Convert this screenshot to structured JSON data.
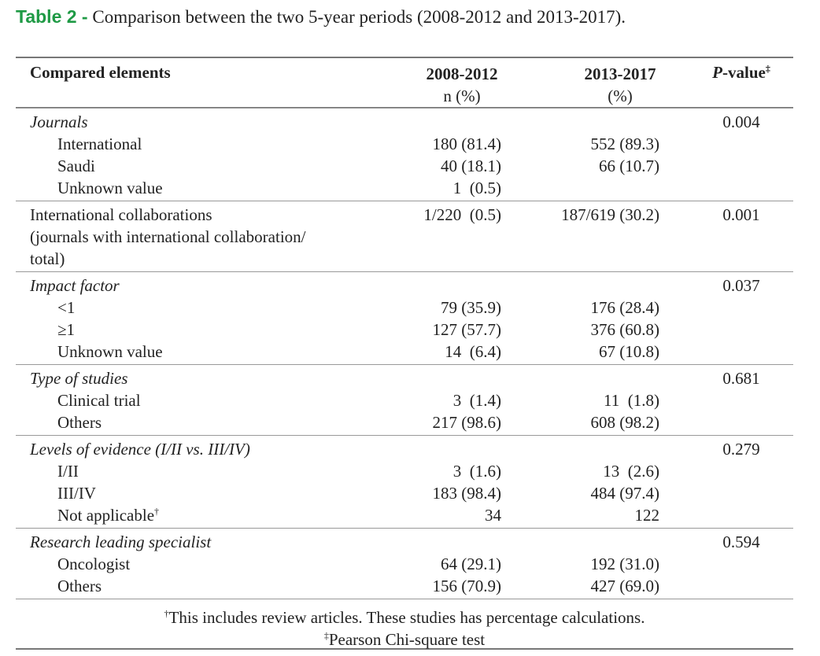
{
  "title": {
    "label": "Table 2 -",
    "text": "Comparison between the two 5-year periods (2008-2012 and 2013-2017)."
  },
  "header": {
    "element": "Compared elements",
    "period1": [
      "2008-2012",
      "n (%)"
    ],
    "period2": [
      "2013-2017",
      "(%)"
    ],
    "p_value": {
      "p": "P",
      "rest": "-value",
      "sup": "‡"
    }
  },
  "sections": [
    {
      "heading": [
        "Journals"
      ],
      "italic": true,
      "values": [
        "",
        ""
      ],
      "p_value": "0.004",
      "rows": [
        {
          "label": "International",
          "values": [
            "180 (81.4)",
            "552 (89.3)"
          ]
        },
        {
          "label": "Saudi",
          "values": [
            "40 (18.1)",
            "66 (10.7)"
          ]
        },
        {
          "label": "Unknown value",
          "values": [
            "1  (0.5)",
            ""
          ]
        }
      ]
    },
    {
      "heading": [
        "International collaborations",
        "(journals with international collaboration/",
        "total)"
      ],
      "italic": false,
      "values": [
        "1/220  (0.5)",
        "187/619 (30.2)"
      ],
      "p_value": "0.001",
      "rows": []
    },
    {
      "heading": [
        "Impact factor"
      ],
      "italic": true,
      "values": [
        "",
        ""
      ],
      "p_value": "0.037",
      "rows": [
        {
          "label": "<1",
          "values": [
            "79 (35.9)",
            "176 (28.4)"
          ]
        },
        {
          "label": "≥1",
          "values": [
            "127 (57.7)",
            "376 (60.8)"
          ]
        },
        {
          "label": "Unknown value",
          "values": [
            "14  (6.4)",
            "67 (10.8)"
          ]
        }
      ]
    },
    {
      "heading": [
        "Type of studies"
      ],
      "italic": true,
      "values": [
        "",
        ""
      ],
      "p_value": "0.681",
      "rows": [
        {
          "label": "Clinical trial",
          "values": [
            "3  (1.4)",
            "11  (1.8)"
          ]
        },
        {
          "label": "Others",
          "values": [
            "217 (98.6)",
            "608 (98.2)"
          ]
        }
      ]
    },
    {
      "heading": [
        "Levels of evidence (I/II vs. III/IV)"
      ],
      "italic": true,
      "values": [
        "",
        ""
      ],
      "p_value": "0.279",
      "rows": [
        {
          "label": "I/II",
          "values": [
            "3  (1.6)",
            "13  (2.6)"
          ]
        },
        {
          "label": "III/IV",
          "values": [
            "183 (98.4)",
            "484 (97.4)"
          ]
        },
        {
          "label": "Not applicable",
          "sup": "†",
          "values": [
            "34",
            "122"
          ]
        }
      ]
    },
    {
      "heading": [
        "Research leading specialist"
      ],
      "italic": true,
      "values": [
        "",
        ""
      ],
      "p_value": "0.594",
      "rows": [
        {
          "label": "Oncologist",
          "values": [
            "64 (29.1)",
            "192 (31.0)"
          ]
        },
        {
          "label": "Others",
          "values": [
            "156 (70.9)",
            "427 (69.0)"
          ]
        }
      ]
    }
  ],
  "footnotes": [
    {
      "sup": "†",
      "text": "This includes review articles. These studies has percentage calculations."
    },
    {
      "sup": "‡",
      "text": "Pearson Chi-square test"
    }
  ]
}
